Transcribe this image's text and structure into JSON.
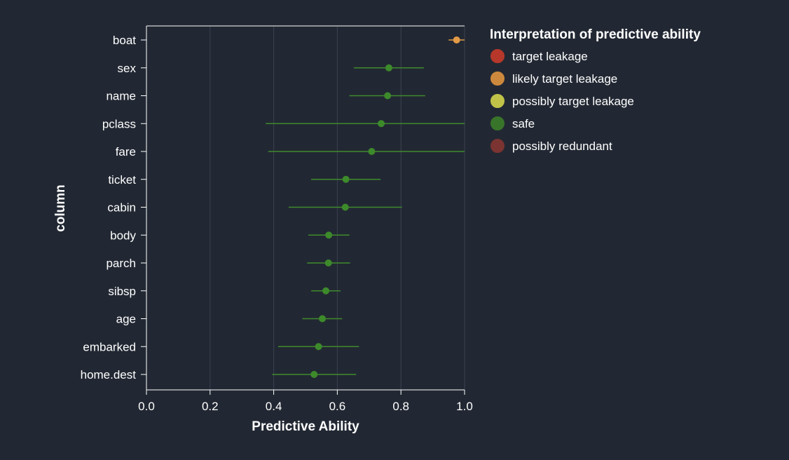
{
  "chart_data": {
    "type": "scatter",
    "xlabel": "Predictive Ability",
    "ylabel": "column",
    "xlim": [
      0,
      1
    ],
    "x_ticks": [
      "0.0",
      "0.2",
      "0.4",
      "0.6",
      "0.8",
      "1.0"
    ],
    "grid": "vertical",
    "categories": [
      "boat",
      "sex",
      "name",
      "pclass",
      "fare",
      "ticket",
      "cabin",
      "body",
      "parch",
      "sibsp",
      "age",
      "embarked",
      "home.dest"
    ],
    "points": [
      {
        "column": "boat",
        "value": 0.975,
        "low": 0.95,
        "high": 1.0,
        "class": "likely target leakage"
      },
      {
        "column": "sex",
        "value": 0.762,
        "low": 0.652,
        "high": 0.872,
        "class": "safe"
      },
      {
        "column": "name",
        "value": 0.758,
        "low": 0.638,
        "high": 0.876,
        "class": "safe"
      },
      {
        "column": "pclass",
        "value": 0.738,
        "low": 0.375,
        "high": 1.0,
        "class": "safe"
      },
      {
        "column": "fare",
        "value": 0.708,
        "low": 0.383,
        "high": 1.0,
        "class": "safe"
      },
      {
        "column": "ticket",
        "value": 0.627,
        "low": 0.518,
        "high": 0.736,
        "class": "safe"
      },
      {
        "column": "cabin",
        "value": 0.625,
        "low": 0.447,
        "high": 0.803,
        "class": "safe"
      },
      {
        "column": "body",
        "value": 0.573,
        "low": 0.509,
        "high": 0.638,
        "class": "safe"
      },
      {
        "column": "parch",
        "value": 0.572,
        "low": 0.505,
        "high": 0.64,
        "class": "safe"
      },
      {
        "column": "sibsp",
        "value": 0.564,
        "low": 0.518,
        "high": 0.61,
        "class": "safe"
      },
      {
        "column": "age",
        "value": 0.553,
        "low": 0.49,
        "high": 0.615,
        "class": "safe"
      },
      {
        "column": "embarked",
        "value": 0.541,
        "low": 0.414,
        "high": 0.668,
        "class": "safe"
      },
      {
        "column": "home.dest",
        "value": 0.527,
        "low": 0.395,
        "high": 0.659,
        "class": "safe"
      }
    ],
    "legend": {
      "title": "Interpretation of predictive ability",
      "placement": "right",
      "entries": [
        {
          "label": "target leakage",
          "color": "#c0392b"
        },
        {
          "label": "likely target leakage",
          "color": "#d68f3e"
        },
        {
          "label": "possibly target leakage",
          "color": "#c9cc4a"
        },
        {
          "label": "safe",
          "color": "#3a7a2a"
        },
        {
          "label": "possibly redundant",
          "color": "#803531"
        }
      ]
    },
    "colors": {
      "background": "#222833",
      "axis": "#ffffff",
      "grid": "#3a4150",
      "text": "#ffffff"
    }
  }
}
